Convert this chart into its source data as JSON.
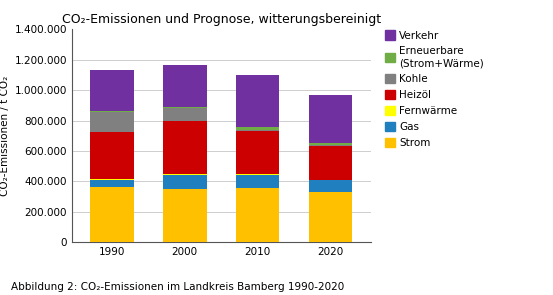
{
  "title": "CO₂-Emissionen und Prognose, witterungsbereinigt",
  "xlabel": "",
  "ylabel": "CO₂-Emissionen / t CO₂",
  "caption": "Abbildung 2: CO₂-Emissionen im Landkreis Bamberg 1990-2020",
  "years": [
    "1990",
    "2000",
    "2010",
    "2020"
  ],
  "categories": [
    "Strom",
    "Gas",
    "Fernwärme",
    "Heizöl",
    "Kohle",
    "Erneuerbare\n(Strom+Wärme)",
    "Verkehr"
  ],
  "colors": [
    "#FFC000",
    "#1F7FBF",
    "#FFFF00",
    "#CC0000",
    "#808080",
    "#70AD47",
    "#7030A0"
  ],
  "data": {
    "Strom": [
      360000,
      350000,
      355000,
      330000
    ],
    "Gas": [
      50000,
      90000,
      85000,
      75000
    ],
    "Fernwärme": [
      5000,
      5000,
      5000,
      5000
    ],
    "Heizöl": [
      310000,
      355000,
      285000,
      220000
    ],
    "Kohle": [
      130000,
      85000,
      10000,
      10000
    ],
    "Erneuerbare\n(Strom+Wärme)": [
      5000,
      5000,
      15000,
      10000
    ],
    "Verkehr": [
      270000,
      275000,
      345000,
      315000
    ]
  },
  "ylim": [
    0,
    1400000
  ],
  "yticks": [
    0,
    200000,
    400000,
    600000,
    800000,
    1000000,
    1200000,
    1400000
  ],
  "ytick_labels": [
    "0",
    "200.000",
    "400.000",
    "600.000",
    "800.000",
    "1.000.000",
    "1.200.000",
    "1.400.000"
  ],
  "background_color": "#FFFFFF",
  "plot_bg_color": "#FFFFFF",
  "bar_width": 0.6,
  "grid_color": "#BBBBBB",
  "title_fontsize": 9,
  "axis_label_fontsize": 7.5,
  "tick_fontsize": 7.5,
  "legend_fontsize": 7.5,
  "caption_fontsize": 7.5
}
